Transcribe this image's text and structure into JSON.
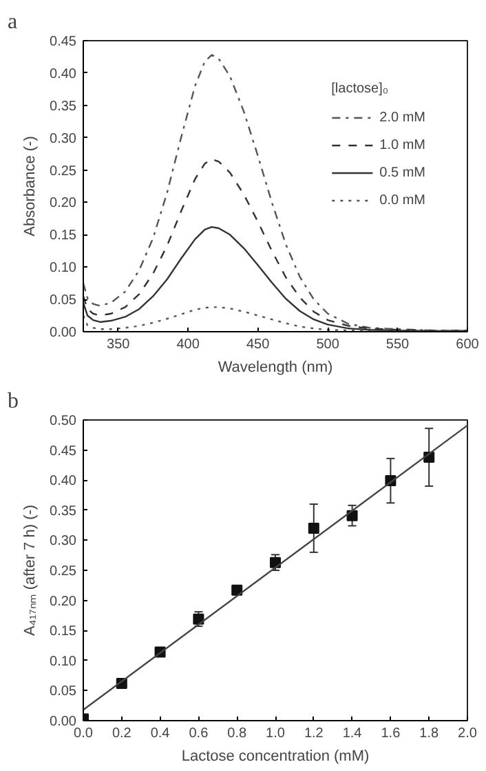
{
  "chart_data": [
    {
      "type": "line",
      "title": "a",
      "xlabel": "Wavelength (nm)",
      "ylabel": "Absorbance (-)",
      "legend_title": "[lactose]₀",
      "legend": "top right",
      "grid": false,
      "x": [
        325,
        328,
        332,
        337,
        345,
        355,
        365,
        375,
        385,
        395,
        405,
        412,
        417,
        422,
        430,
        440,
        450,
        460,
        470,
        480,
        490,
        500,
        515,
        530,
        550,
        575,
        600
      ],
      "xlim": [
        325,
        600
      ],
      "xticks": [
        350,
        400,
        450,
        500,
        550,
        600
      ],
      "ylim": [
        0,
        0.45
      ],
      "yticks": [
        {
          "value": 0,
          "label": "0.00"
        },
        {
          "value": 0.05,
          "label": "0.05"
        },
        {
          "value": 0.1,
          "label": "0.10"
        },
        {
          "value": 0.15,
          "label": "0.15"
        },
        {
          "value": 0.2,
          "label": "0.20"
        },
        {
          "value": 0.25,
          "label": "0.25"
        },
        {
          "value": 0.3,
          "label": "0.30"
        },
        {
          "value": 0.35,
          "label": "0.35"
        },
        {
          "value": 0.4,
          "label": "0.40"
        },
        {
          "value": 0.45,
          "label": "0.45"
        }
      ],
      "series": [
        {
          "name": "2.0 mM",
          "color": "#555555",
          "line_style": "dashdot",
          "values": [
            0.075,
            0.052,
            0.043,
            0.04,
            0.045,
            0.062,
            0.095,
            0.145,
            0.215,
            0.3,
            0.38,
            0.418,
            0.428,
            0.422,
            0.395,
            0.34,
            0.272,
            0.2,
            0.135,
            0.085,
            0.05,
            0.028,
            0.012,
            0.006,
            0.004,
            0.002,
            0.002
          ]
        },
        {
          "name": "1.0 mM",
          "color": "#333333",
          "line_style": "dashed",
          "values": [
            0.055,
            0.035,
            0.028,
            0.025,
            0.028,
            0.038,
            0.058,
            0.09,
            0.133,
            0.186,
            0.236,
            0.26,
            0.267,
            0.263,
            0.246,
            0.212,
            0.17,
            0.125,
            0.084,
            0.053,
            0.031,
            0.018,
            0.009,
            0.005,
            0.003,
            0.002,
            0.001
          ]
        },
        {
          "name": "0.5 mM",
          "color": "#333333",
          "line_style": "solid",
          "values": [
            0.045,
            0.025,
            0.018,
            0.015,
            0.017,
            0.023,
            0.035,
            0.055,
            0.081,
            0.113,
            0.143,
            0.158,
            0.162,
            0.16,
            0.15,
            0.129,
            0.103,
            0.076,
            0.051,
            0.032,
            0.019,
            0.011,
            0.005,
            0.003,
            0.002,
            0.001,
            0.001
          ]
        },
        {
          "name": "0.0 mM",
          "color": "#555555",
          "line_style": "dotted",
          "values": [
            0.025,
            0.01,
            0.006,
            0.004,
            0.004,
            0.006,
            0.009,
            0.014,
            0.02,
            0.027,
            0.034,
            0.037,
            0.038,
            0.038,
            0.036,
            0.031,
            0.025,
            0.019,
            0.013,
            0.008,
            0.005,
            0.003,
            0.002,
            0.001,
            0.001,
            0.001,
            0.001
          ]
        }
      ]
    },
    {
      "type": "scatter",
      "title": "b",
      "xlabel": "Lactose concentration (mM)",
      "ylabel": "A₄₁₇ₙₘ (after 7 h) (-)",
      "grid": false,
      "legend": false,
      "xlim": [
        0,
        2.0
      ],
      "xticks": [
        {
          "value": 0,
          "label": "0.0"
        },
        {
          "value": 0.2,
          "label": "0.2"
        },
        {
          "value": 0.4,
          "label": "0.4"
        },
        {
          "value": 0.6,
          "label": "0.6"
        },
        {
          "value": 0.8,
          "label": "0.8"
        },
        {
          "value": 1.0,
          "label": "1.0"
        },
        {
          "value": 1.2,
          "label": "1.2"
        },
        {
          "value": 1.4,
          "label": "1.4"
        },
        {
          "value": 1.6,
          "label": "1.6"
        },
        {
          "value": 1.8,
          "label": "1.8"
        },
        {
          "value": 2.0,
          "label": "2.0"
        }
      ],
      "ylim": [
        0,
        0.5
      ],
      "yticks": [
        {
          "value": 0,
          "label": "0.00"
        },
        {
          "value": 0.05,
          "label": "0.05"
        },
        {
          "value": 0.1,
          "label": "0.10"
        },
        {
          "value": 0.15,
          "label": "0.15"
        },
        {
          "value": 0.2,
          "label": "0.20"
        },
        {
          "value": 0.25,
          "label": "0.25"
        },
        {
          "value": 0.3,
          "label": "0.30"
        },
        {
          "value": 0.35,
          "label": "0.35"
        },
        {
          "value": 0.4,
          "label": "0.40"
        },
        {
          "value": 0.45,
          "label": "0.45"
        },
        {
          "value": 0.5,
          "label": "0.50"
        }
      ],
      "series": [
        {
          "type": "scatter",
          "marker": "square",
          "color": "#111111",
          "x": [
            0.0,
            0.2,
            0.4,
            0.6,
            0.8,
            1.0,
            1.2,
            1.4,
            1.6,
            1.8
          ],
          "values": [
            0.003,
            0.062,
            0.114,
            0.169,
            0.217,
            0.263,
            0.32,
            0.341,
            0.399,
            0.438
          ],
          "errors": [
            null,
            0.003,
            0.004,
            0.012,
            0.005,
            0.013,
            0.04,
            0.017,
            0.037,
            0.048
          ]
        },
        {
          "type": "line",
          "color": "#444444",
          "x": [
            0,
            2.0
          ],
          "values": [
            0.018,
            0.491
          ]
        }
      ]
    }
  ]
}
